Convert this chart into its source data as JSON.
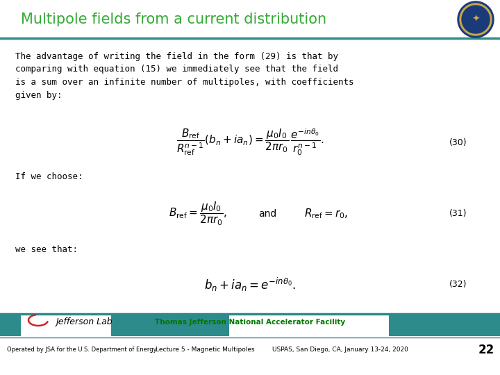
{
  "title": "Multipole fields from a current distribution",
  "title_color": "#33AA33",
  "title_fontsize": 15,
  "bg_color": "#FFFFFF",
  "header_line_color": "#2E8B8B",
  "footer_line_color": "#2E8B8B",
  "body_text": "The advantage of writing the field in the form (29) is that by\ncomparing with equation (15) we immediately see that the field\nis a sum over an infinite number of multipoles, with coefficients\ngiven by:",
  "if_text": "If we choose:",
  "we_text": "we see that:",
  "eq30_label": "(30)",
  "eq31_label": "(31)",
  "eq32_label": "(32)",
  "footer_center_text": "Thomas Jefferson National Accelerator Facility",
  "footer_center_color": "#007700",
  "footer_left_text": "Operated by JSA for the U.S. Department of Energy",
  "footer_mid_text": "Lecture 5 - Magnetic Multipoles",
  "footer_right_text": "USPAS, San Diego, CA, January 13-24, 2020",
  "page_number": "22",
  "text_fontsize": 9,
  "eq_fontsize": 10,
  "body_fontsize": 9
}
